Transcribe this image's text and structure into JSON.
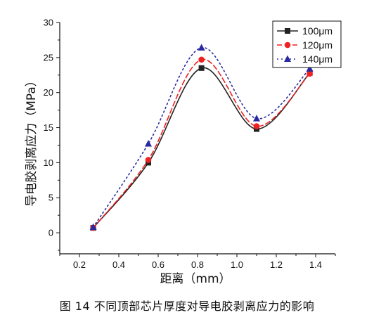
{
  "chart_data": {
    "type": "line",
    "xlabel": "距离（mm）",
    "ylabel": "导电胶剥离应力（MPa）",
    "xlim": [
      0.1,
      1.5
    ],
    "ylim": [
      -3,
      30
    ],
    "xticks": [
      "0.2",
      "0.4",
      "0.6",
      "0.8",
      "1.0",
      "1.2",
      "1.4"
    ],
    "yticks": [
      "0",
      "5",
      "10",
      "15",
      "20",
      "25",
      "30"
    ],
    "x": [
      0.27,
      0.55,
      0.82,
      1.1,
      1.37
    ],
    "series": [
      {
        "name": "100μm",
        "values": [
          0.7,
          10.0,
          23.5,
          14.8,
          22.8
        ],
        "color": "#222222",
        "marker": "square",
        "dash": "solid"
      },
      {
        "name": "120μm",
        "values": [
          0.7,
          10.4,
          24.7,
          15.2,
          22.7
        ],
        "color": "#ee2222",
        "marker": "circle",
        "dash": "dashed"
      },
      {
        "name": "140μm",
        "values": [
          0.8,
          12.7,
          26.4,
          16.3,
          23.4
        ],
        "color": "#2a2aa0",
        "marker": "triangle",
        "dash": "dotted"
      }
    ],
    "legend_position": "top-right",
    "grid": false
  },
  "caption": "图 14  不同顶部芯片厚度对导电胶剥离应力的影响"
}
